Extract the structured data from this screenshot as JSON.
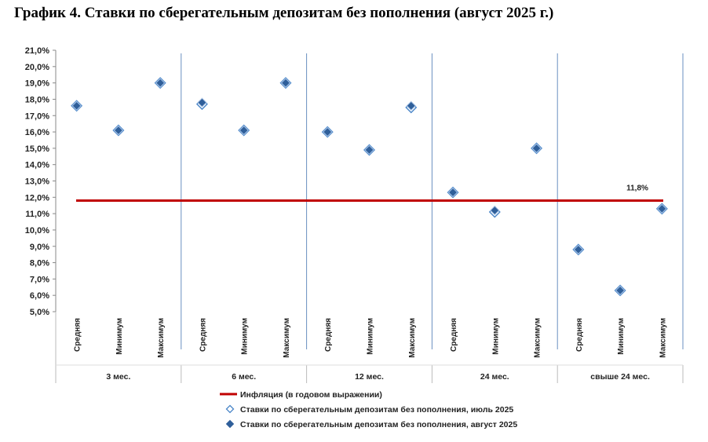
{
  "chart_data": {
    "type": "scatter",
    "title": "График 4. Ставки по сберегательным депозитам без пополнения (август 2025 г.)",
    "groups": [
      "3 мес.",
      "6 мес.",
      "12 мес.",
      "24 мес.",
      "свыше 24 мес."
    ],
    "subcategories": [
      "Средняя",
      "Минимум",
      "Максимум"
    ],
    "yticks": [
      "5,0%",
      "6,0%",
      "7,0%",
      "8,0%",
      "9,0%",
      "10,0%",
      "11,0%",
      "12,0%",
      "13,0%",
      "14,0%",
      "15,0%",
      "16,0%",
      "17,0%",
      "18,0%",
      "19,0%",
      "20,0%",
      "21,0%"
    ],
    "ylim": [
      5,
      21
    ],
    "grid": false,
    "inflation": {
      "name": "Инфляция (в годовом выражении)",
      "value": 11.8,
      "label": "11,8%",
      "color": "#c00000"
    },
    "series": [
      {
        "name": "Ставки по сберегательным депозитам без пополнения, июль 2025",
        "marker": "hollow-diamond",
        "color": "#4a86c8",
        "values": [
          17.6,
          16.1,
          19.0,
          17.7,
          16.1,
          19.0,
          16.0,
          14.9,
          17.5,
          12.3,
          11.1,
          15.0,
          8.8,
          6.3,
          11.3
        ]
      },
      {
        "name": "Ставки по сберегательным депозитам без пополнения, август 2025",
        "marker": "filled-diamond",
        "color": "#2f5f9a",
        "values": [
          17.6,
          16.1,
          19.0,
          17.8,
          16.1,
          19.0,
          16.0,
          14.9,
          17.6,
          12.3,
          11.2,
          15.0,
          8.8,
          6.3,
          11.3
        ]
      }
    ],
    "legend_position": "bottom"
  }
}
